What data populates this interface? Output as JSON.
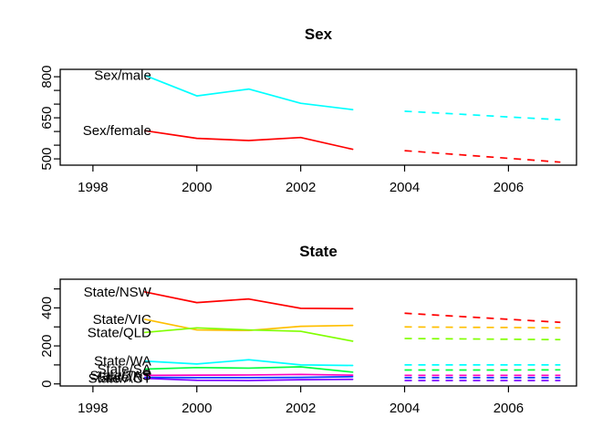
{
  "figure": {
    "background": "#FFFFFF",
    "panel_titles": [
      "Sex",
      "State"
    ]
  },
  "chart_data": [
    {
      "type": "line",
      "title": "Sex",
      "x_observed": [
        1999,
        2000,
        2001,
        2002,
        2003
      ],
      "x_forecast": [
        2004,
        2005,
        2006,
        2007
      ],
      "xticks": [
        1998,
        2000,
        2002,
        2004,
        2006
      ],
      "xlim": [
        1997.37,
        2007.31
      ],
      "ylim": [
        477,
        827
      ],
      "yticks": [
        500,
        550,
        600,
        650,
        700,
        750,
        800
      ],
      "yticks_labeled": [
        500,
        650,
        800
      ],
      "grid": false,
      "legend": "in-plot text labels at series start",
      "line_style": {
        "observed": "solid",
        "forecast": "dashed"
      },
      "series": [
        {
          "id": "sex-male",
          "name": "Sex/male",
          "color": "#00FFFF",
          "observed": [
            805,
            730,
            755,
            703,
            680
          ],
          "forecast": [
            674,
            664,
            653,
            643
          ]
        },
        {
          "id": "sex-female",
          "name": "Sex/female",
          "color": "#FF0000",
          "observed": [
            603,
            575,
            567,
            578,
            535
          ],
          "forecast": [
            530,
            516,
            502,
            488
          ]
        }
      ]
    },
    {
      "type": "line",
      "title": "State",
      "x_observed": [
        1999,
        2000,
        2001,
        2002,
        2003
      ],
      "x_forecast": [
        2004,
        2005,
        2006,
        2007
      ],
      "xticks": [
        1998,
        2000,
        2002,
        2004,
        2006
      ],
      "xlim": [
        1997.37,
        2007.31
      ],
      "ylim": [
        -11,
        551
      ],
      "yticks": [
        0,
        100,
        200,
        300,
        400,
        500
      ],
      "yticks_labeled": [
        0,
        200,
        400
      ],
      "grid": false,
      "legend": "in-plot text labels at series start",
      "line_style": {
        "observed": "solid",
        "forecast": "dashed"
      },
      "series": [
        {
          "id": "state-nsw",
          "name": "State/NSW",
          "color": "#FF0000",
          "observed": [
            484,
            428,
            447,
            398,
            396
          ],
          "forecast": [
            372,
            356,
            340,
            324
          ]
        },
        {
          "id": "state-vic",
          "name": "State/VIC",
          "color": "#FFBF00",
          "observed": [
            340,
            284,
            281,
            303,
            308
          ],
          "forecast": [
            300,
            298,
            297,
            295
          ]
        },
        {
          "id": "state-qld",
          "name": "State/QLD",
          "color": "#80FF00",
          "observed": [
            271,
            295,
            284,
            277,
            225
          ],
          "forecast": [
            239,
            237,
            235,
            233
          ]
        },
        {
          "id": "state-sa",
          "name": "State/SA",
          "color": "#00FF40",
          "observed": [
            78,
            86,
            83,
            90,
            62
          ],
          "forecast": [
            73,
            73,
            73,
            74
          ]
        },
        {
          "id": "state-wa",
          "name": "State/WA",
          "color": "#00FFFF",
          "observed": [
            120,
            105,
            127,
            100,
            97
          ],
          "forecast": [
            100,
            100,
            100,
            100
          ]
        },
        {
          "id": "state-nt",
          "name": "State/NT",
          "color": "#0040FF",
          "observed": [
            34,
            33,
            33,
            34,
            38
          ],
          "forecast": [
            33,
            33,
            33,
            33
          ]
        },
        {
          "id": "state-act",
          "name": "State/ACT",
          "color": "#8000FF",
          "observed": [
            29,
            19,
            18,
            22,
            24
          ],
          "forecast": [
            18,
            18,
            18,
            18
          ]
        },
        {
          "id": "state-tas",
          "name": "State/TAS",
          "color": "#FF00BF",
          "observed": [
            45,
            46,
            47,
            50,
            46
          ],
          "forecast": [
            45,
            45,
            45,
            45
          ]
        }
      ]
    }
  ]
}
